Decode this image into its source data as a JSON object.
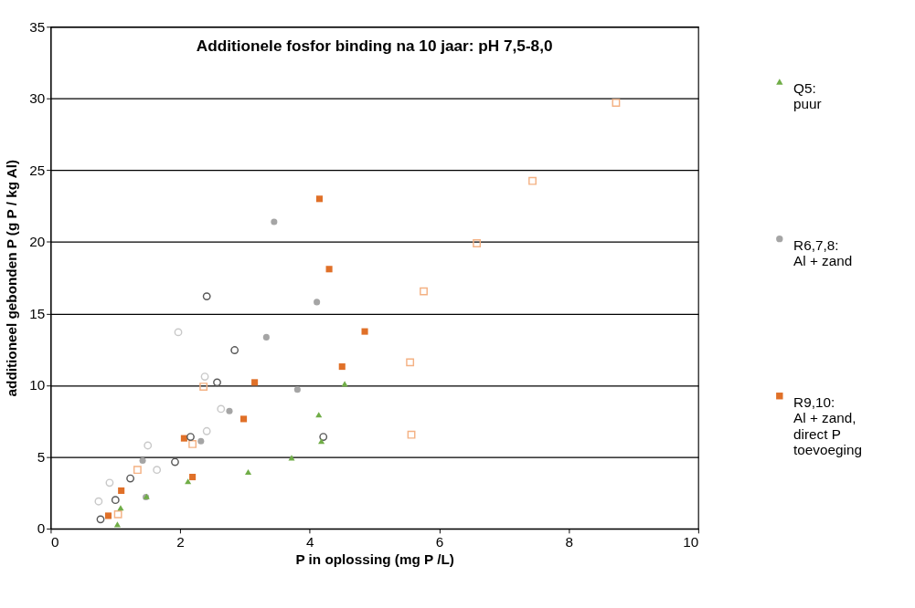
{
  "chart_data": {
    "type": "scatter",
    "title": "Additionele fosfor binding na 10 jaar: pH 7,5-8,0",
    "xlabel": "P in oplossing (mg P /L)",
    "ylabel": "additioneel gebonden P (g P / kg Al)",
    "xlim": [
      0,
      10
    ],
    "xticks": [
      0,
      2,
      4,
      6,
      8,
      10
    ],
    "ylim": [
      0,
      35
    ],
    "yticks": [
      0,
      5,
      10,
      15,
      20,
      25,
      30,
      35
    ],
    "grid": "y",
    "legend": "right",
    "series": [
      {
        "name": "Q5: puur",
        "color": "#70ad47",
        "marker": "triangle",
        "x": [
          1.03,
          1.08,
          1.48,
          2.12,
          3.05,
          3.72,
          4.14,
          4.18,
          4.54
        ],
        "values": [
          0.3,
          1.45,
          2.25,
          3.3,
          3.95,
          4.95,
          7.95,
          6.1,
          10.1
        ]
      },
      {
        "name": "R6,7,8: Al + zand",
        "color": "#a5a5a5",
        "marker": "circle",
        "x": [
          1.42,
          1.47,
          2.32,
          2.76,
          3.33,
          3.45,
          3.81,
          4.11
        ],
        "values": [
          4.75,
          2.2,
          6.1,
          8.2,
          13.35,
          21.4,
          9.7,
          15.8
        ]
      },
      {
        "color": "#595959",
        "marker": "circle",
        "x": [
          0.77,
          1.0,
          1.23,
          1.92,
          2.16,
          2.41,
          2.57,
          2.84,
          4.21
        ],
        "values": [
          0.65,
          2.0,
          3.5,
          4.65,
          6.4,
          16.2,
          10.2,
          12.45,
          6.4
        ]
      },
      {
        "color": "#c9c9c9",
        "marker": "circle",
        "x": [
          0.74,
          0.91,
          1.5,
          1.64,
          1.97,
          2.38,
          2.41,
          2.63
        ],
        "values": [
          1.9,
          3.2,
          5.8,
          4.1,
          13.7,
          10.6,
          6.8,
          8.35
        ]
      },
      {
        "name": "R9,10: Al + zand, direct P toevoeging",
        "color": "#e07028",
        "marker": "square",
        "x": [
          0.89,
          1.09,
          2.06,
          2.19,
          2.98,
          3.15,
          4.15,
          4.3,
          4.5,
          4.85
        ],
        "values": [
          0.9,
          2.65,
          6.3,
          3.6,
          7.65,
          10.2,
          23.0,
          18.1,
          11.3,
          13.75
        ]
      },
      {
        "color": "#f4b183",
        "marker": "square",
        "x": [
          1.04,
          1.34,
          2.19,
          2.36,
          5.55,
          5.57,
          5.76,
          6.58,
          7.44,
          8.73
        ],
        "values": [
          1.0,
          4.1,
          5.9,
          9.9,
          11.6,
          6.55,
          16.55,
          19.9,
          24.25,
          29.7
        ]
      }
    ]
  }
}
